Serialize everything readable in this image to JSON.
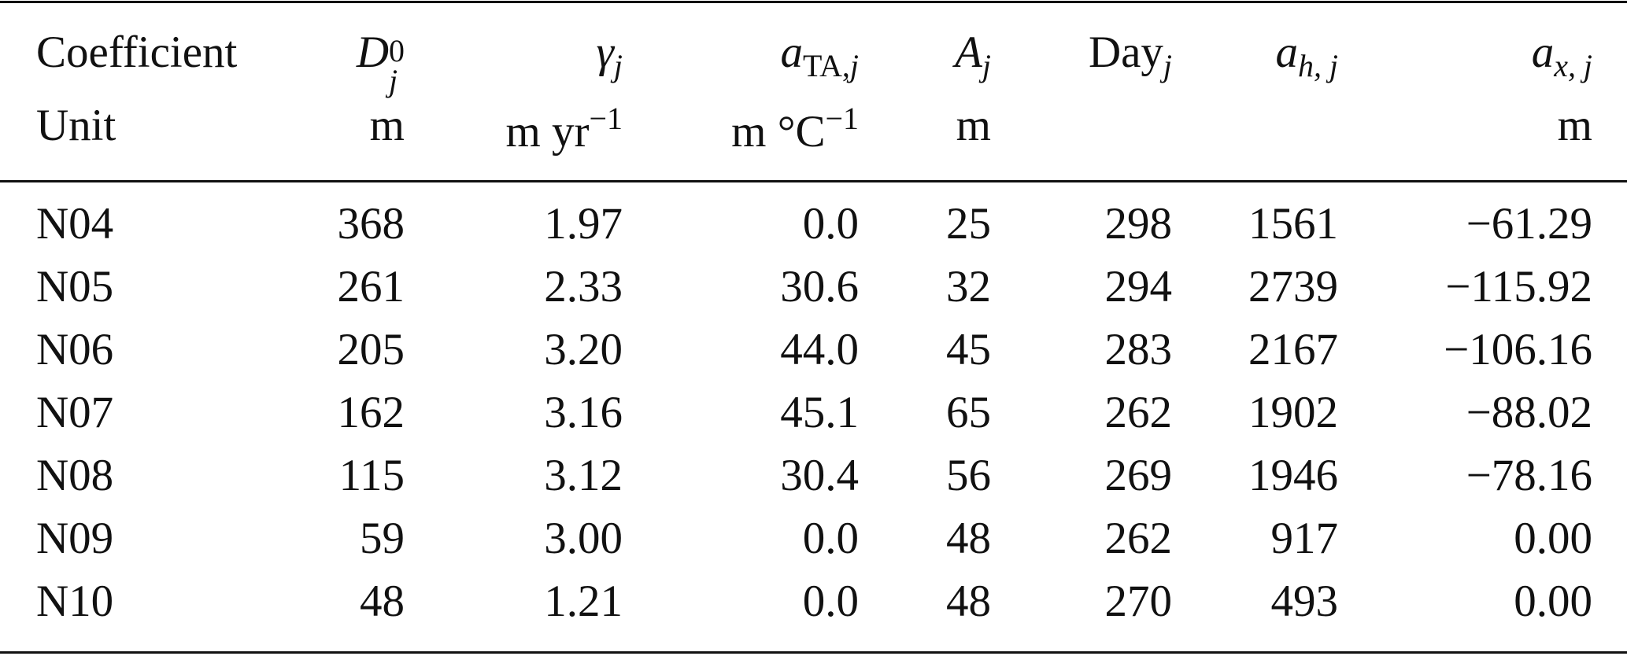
{
  "table": {
    "header_row1_label": "Coefficient",
    "header_row2_label": "Unit",
    "columns": [
      {
        "symbol": "D",
        "sup": "0",
        "sub": "j",
        "unit": "m",
        "unit_sup": ""
      },
      {
        "symbol": "γ",
        "sub": "j",
        "unit": "m yr",
        "unit_sup": "−1"
      },
      {
        "symbol": "a",
        "sub_upright": "TA,",
        "sub": "j",
        "unit": "m °C",
        "unit_sup": "−1"
      },
      {
        "symbol": "A",
        "sub": "j",
        "unit": "m",
        "unit_sup": ""
      },
      {
        "symbol_upright": "Day",
        "sub": "j",
        "unit": "",
        "unit_sup": ""
      },
      {
        "symbol": "a",
        "sub": "h, j",
        "unit": "",
        "unit_sup": ""
      },
      {
        "symbol": "a",
        "sub": "x, j",
        "unit": "m",
        "unit_sup": ""
      }
    ],
    "rows": [
      {
        "name": "N04",
        "values": [
          "368",
          "1.97",
          "0.0",
          "25",
          "298",
          "1561",
          "−61.29"
        ]
      },
      {
        "name": "N05",
        "values": [
          "261",
          "2.33",
          "30.6",
          "32",
          "294",
          "2739",
          "−115.92"
        ]
      },
      {
        "name": "N06",
        "values": [
          "205",
          "3.20",
          "44.0",
          "45",
          "283",
          "2167",
          "−106.16"
        ]
      },
      {
        "name": "N07",
        "values": [
          "162",
          "3.16",
          "45.1",
          "65",
          "262",
          "1902",
          "−88.02"
        ]
      },
      {
        "name": "N08",
        "values": [
          "115",
          "3.12",
          "30.4",
          "56",
          "269",
          "1946",
          "−78.16"
        ]
      },
      {
        "name": "N09",
        "values": [
          "59",
          "3.00",
          "0.0",
          "48",
          "262",
          "917",
          "0.00"
        ]
      },
      {
        "name": "N10",
        "values": [
          "48",
          "1.21",
          "0.0",
          "48",
          "270",
          "493",
          "0.00"
        ]
      }
    ]
  }
}
